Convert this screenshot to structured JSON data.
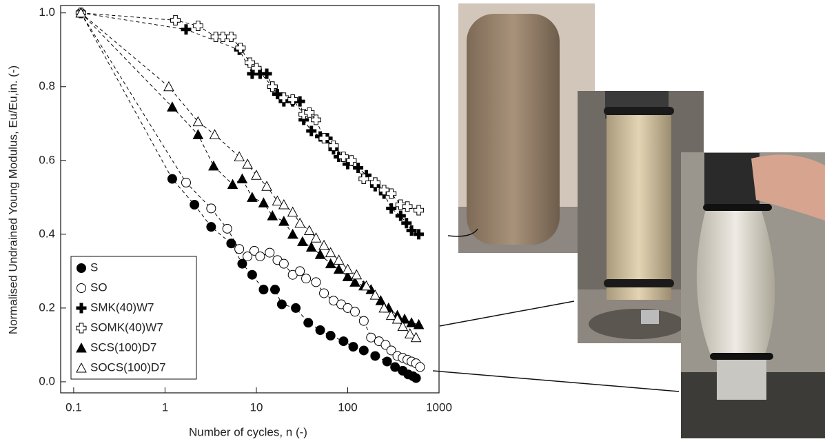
{
  "chart_data": {
    "type": "scatter",
    "x_label": "Number of cycles, n (-)",
    "y_label": "Normalised Undrained Young Modulus, Eu/Eu,in. (-)",
    "xscale": "log",
    "xlim": [
      0.072,
      1000
    ],
    "ylim": [
      -0.03,
      1.02
    ],
    "xticks": [
      0.1,
      1,
      10,
      100,
      1000
    ],
    "yticks": [
      {
        "value": 0,
        "label": "0.0"
      },
      0.2,
      0.4,
      0.6,
      0.8,
      {
        "value": 1,
        "label": "1.0"
      }
    ],
    "legend": "lower left",
    "connect": "dashed",
    "series": [
      {
        "name": "S",
        "marker": "circle",
        "filled": true,
        "color": "#000000",
        "x": [
          0.12,
          1.2,
          2.1,
          3.2,
          5.3,
          7,
          9,
          12,
          16,
          19,
          27,
          37,
          50,
          65,
          90,
          115,
          150,
          200,
          270,
          330,
          400,
          460,
          520,
          560
        ],
        "values": [
          1.0,
          0.55,
          0.48,
          0.42,
          0.375,
          0.32,
          0.29,
          0.25,
          0.25,
          0.21,
          0.2,
          0.16,
          0.14,
          0.125,
          0.11,
          0.095,
          0.085,
          0.07,
          0.055,
          0.04,
          0.03,
          0.02,
          0.015,
          0.01
        ]
      },
      {
        "name": "SO",
        "marker": "circle",
        "filled": false,
        "color": "#000000",
        "x": [
          0.12,
          1.7,
          3.2,
          4.8,
          6.5,
          8,
          9.5,
          11,
          14,
          17,
          20,
          25,
          30,
          35,
          45,
          55,
          70,
          85,
          100,
          120,
          150,
          180,
          220,
          260,
          300,
          350,
          400,
          450,
          500,
          560,
          620
        ],
        "values": [
          1.0,
          0.54,
          0.47,
          0.415,
          0.36,
          0.34,
          0.355,
          0.34,
          0.35,
          0.33,
          0.32,
          0.29,
          0.3,
          0.28,
          0.27,
          0.24,
          0.22,
          0.21,
          0.2,
          0.19,
          0.165,
          0.12,
          0.11,
          0.1,
          0.085,
          0.07,
          0.065,
          0.06,
          0.055,
          0.05,
          0.04
        ]
      },
      {
        "name": "SMK(40)W7",
        "marker": "plus",
        "filled": true,
        "color": "#000000",
        "x": [
          0.12,
          1.7,
          6.5,
          9,
          11,
          13,
          15,
          17,
          20,
          25,
          30,
          33,
          40,
          50,
          60,
          70,
          80,
          100,
          130,
          160,
          200,
          250,
          300,
          380,
          440,
          500,
          600
        ],
        "values": [
          1.0,
          0.955,
          0.9,
          0.835,
          0.835,
          0.835,
          0.8,
          0.78,
          0.76,
          0.76,
          0.76,
          0.71,
          0.68,
          0.665,
          0.66,
          0.63,
          0.61,
          0.59,
          0.58,
          0.56,
          0.53,
          0.51,
          0.47,
          0.45,
          0.43,
          0.41,
          0.4
        ]
      },
      {
        "name": "SOMK(40)W7",
        "marker": "plus",
        "filled": false,
        "color": "#000000",
        "x": [
          0.12,
          1.3,
          2.3,
          3.6,
          4.3,
          5.3,
          6.7,
          8.5,
          10,
          15,
          20,
          25,
          33,
          38,
          45,
          55,
          70,
          90,
          110,
          150,
          200,
          250,
          300,
          380,
          450,
          600
        ],
        "values": [
          1.0,
          0.98,
          0.965,
          0.935,
          0.935,
          0.935,
          0.905,
          0.865,
          0.85,
          0.8,
          0.77,
          0.765,
          0.725,
          0.73,
          0.71,
          0.66,
          0.64,
          0.61,
          0.6,
          0.55,
          0.54,
          0.52,
          0.51,
          0.48,
          0.475,
          0.465
        ]
      },
      {
        "name": "SCS(100)D7",
        "marker": "triangle",
        "filled": true,
        "color": "#000000",
        "x": [
          0.12,
          1.2,
          2.3,
          3.4,
          5.5,
          7,
          9,
          12,
          15,
          20,
          25,
          32,
          40,
          50,
          65,
          80,
          100,
          120,
          150,
          180,
          230,
          280,
          350,
          420,
          500,
          600
        ],
        "values": [
          1.0,
          0.745,
          0.67,
          0.585,
          0.535,
          0.55,
          0.5,
          0.485,
          0.45,
          0.435,
          0.4,
          0.38,
          0.365,
          0.345,
          0.32,
          0.305,
          0.285,
          0.27,
          0.26,
          0.25,
          0.22,
          0.2,
          0.18,
          0.17,
          0.16,
          0.155
        ]
      },
      {
        "name": "SOCS(100)D7",
        "marker": "triangle",
        "filled": false,
        "color": "#000000",
        "x": [
          0.12,
          1.1,
          2.3,
          3.5,
          6.5,
          8,
          10,
          13,
          17,
          20,
          25,
          30,
          38,
          45,
          55,
          65,
          80,
          100,
          125,
          160,
          200,
          250,
          300,
          350,
          400,
          480,
          560
        ],
        "values": [
          1.0,
          0.8,
          0.705,
          0.67,
          0.61,
          0.59,
          0.56,
          0.53,
          0.49,
          0.48,
          0.46,
          0.43,
          0.41,
          0.39,
          0.37,
          0.35,
          0.33,
          0.305,
          0.29,
          0.26,
          0.235,
          0.2,
          0.18,
          0.17,
          0.15,
          0.13,
          0.12
        ]
      }
    ]
  }
}
